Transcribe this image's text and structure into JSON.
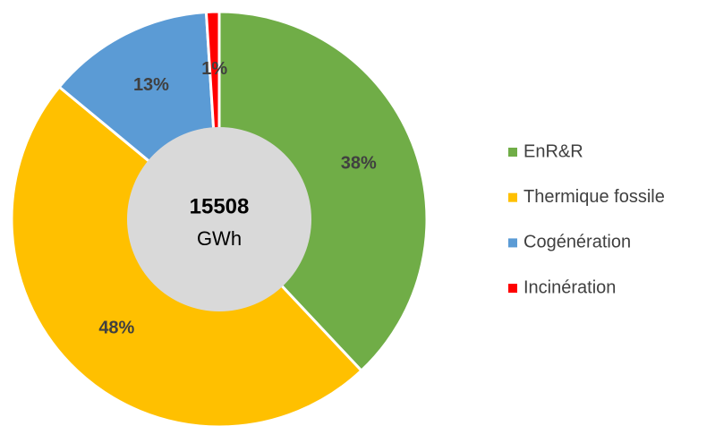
{
  "chart_data": {
    "type": "donut",
    "categories": [
      "EnR&R",
      "Thermique fossile",
      "Cogénération",
      "Incinération"
    ],
    "values": [
      38,
      48,
      13,
      1
    ],
    "value_labels": [
      "38%",
      "48%",
      "13%",
      "1%"
    ],
    "colors": [
      "#70ad47",
      "#ffc000",
      "#5b9bd5",
      "#ff0000"
    ],
    "center_value": "15508",
    "center_unit": "GWh",
    "legend": "right"
  }
}
